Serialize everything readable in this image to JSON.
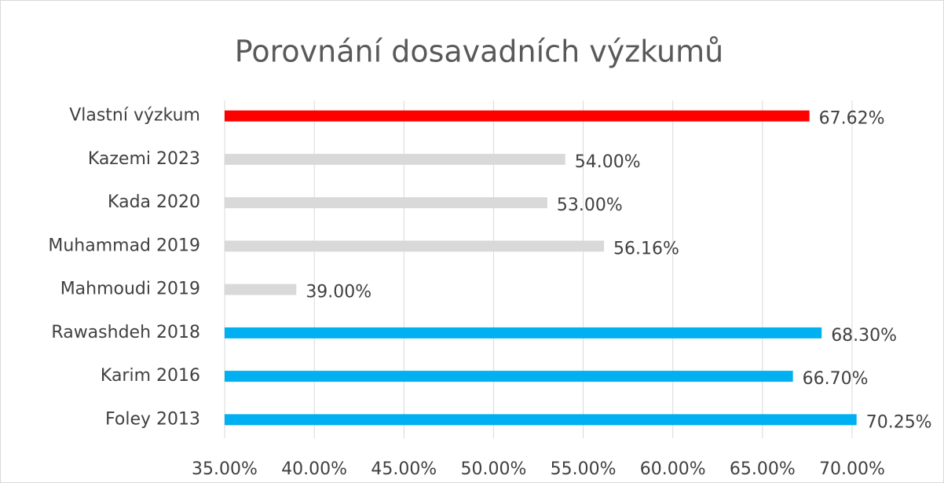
{
  "chart_data": {
    "type": "bar",
    "orientation": "horizontal",
    "title": "Porovnání dosavadních výzkumů",
    "categories": [
      "Vlastní výzkum",
      "Kazemi 2023",
      "Kada 2020",
      "Muhammad 2019",
      "Mahmoudi 2019",
      "Rawashdeh 2018",
      "Karim 2016",
      "Foley 2013"
    ],
    "values": [
      67.62,
      54,
      53,
      56.16,
      39,
      68.3,
      66.7,
      70.25
    ],
    "value_labels": [
      "67.62%",
      "54.00%",
      "53.00%",
      "56.16%",
      "39.00%",
      "68.30%",
      "66.70%",
      "70.25%"
    ],
    "colors": [
      "#ff0000",
      "#d9d9d9",
      "#d9d9d9",
      "#d9d9d9",
      "#d9d9d9",
      "#00b0f0",
      "#00b0f0",
      "#00b0f0"
    ],
    "xlim": [
      35,
      70
    ],
    "xticks": [
      {
        "value": 35,
        "label": "35.00%"
      },
      {
        "value": 40,
        "label": "40.00%"
      },
      {
        "value": 45,
        "label": "45.00%"
      },
      {
        "value": 50,
        "label": "50.00%"
      },
      {
        "value": 55,
        "label": "55.00%"
      },
      {
        "value": 60,
        "label": "60.00%"
      },
      {
        "value": 65,
        "label": "65.00%"
      },
      {
        "value": 70,
        "label": "70.00%"
      }
    ],
    "grid": true
  }
}
